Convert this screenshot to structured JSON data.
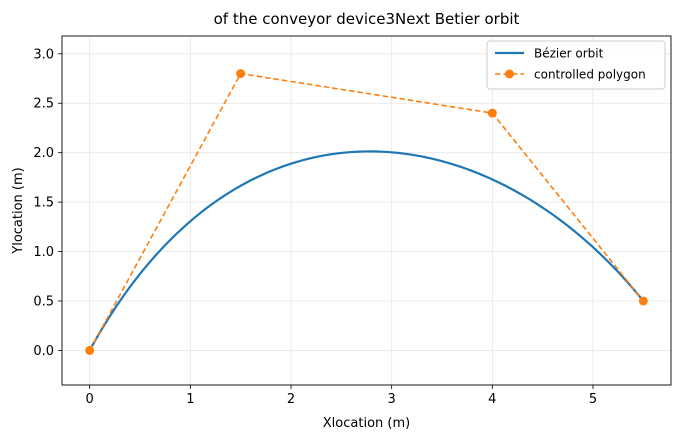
{
  "chart_data": {
    "type": "line",
    "title": "of the conveyor device3Next Betier orbit",
    "xlabel": "Xlocation (m)",
    "ylabel": "Ylocation (m)",
    "xlim": [
      -0.275,
      5.775
    ],
    "ylim": [
      -0.35,
      3.18
    ],
    "xticks": [
      0,
      1,
      2,
      3,
      4,
      5
    ],
    "yticks": [
      0.0,
      0.5,
      1.0,
      1.5,
      2.0,
      2.5,
      3.0
    ],
    "xtick_labels": [
      "0",
      "1",
      "2",
      "3",
      "4",
      "5"
    ],
    "ytick_labels": [
      "0.0",
      "0.5",
      "1.0",
      "1.5",
      "2.0",
      "2.5",
      "3.0"
    ],
    "grid": true,
    "legend_position": "top-right",
    "series": [
      {
        "name": "Bézier orbit",
        "style": "solid",
        "color": "#1f77b4",
        "curve": "cubic-bezier",
        "control_points": [
          [
            0,
            0
          ],
          [
            1.5,
            2.8
          ],
          [
            4,
            2.4
          ],
          [
            5.5,
            0.5
          ]
        ]
      },
      {
        "name": "controlled polygon",
        "style": "dashed",
        "marker": "circle",
        "color": "#ff7f0e",
        "x": [
          0,
          1.5,
          4,
          5.5
        ],
        "y": [
          0,
          2.8,
          2.4,
          0.5
        ]
      }
    ]
  }
}
